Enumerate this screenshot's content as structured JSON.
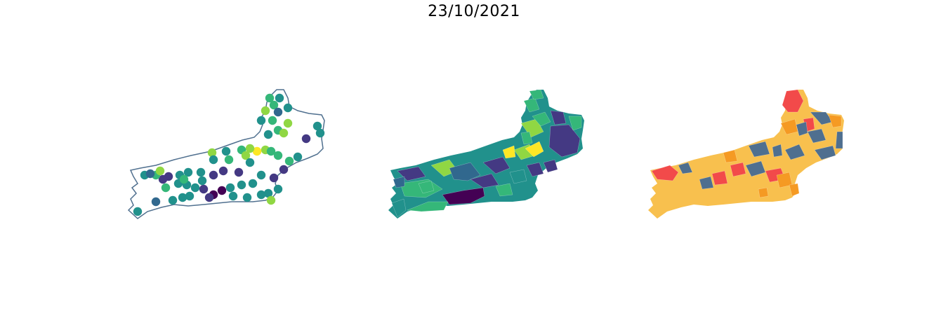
{
  "title": "23/10/2021",
  "panels": [
    {
      "id": "points-map",
      "kind": "bubble-map"
    },
    {
      "id": "choropleth-viridis",
      "kind": "choropleth"
    },
    {
      "id": "choropleth-risk",
      "kind": "choropleth"
    }
  ],
  "colors": {
    "outline": "#50708f",
    "viridis_dark": "#440154",
    "viridis_indigo": "#443983",
    "viridis_blue": "#31688e",
    "viridis_teal": "#21918c",
    "viridis_green": "#35b779",
    "viridis_lime": "#90d743",
    "viridis_yellow": "#fde725",
    "risk_blue": "#4f6f8f",
    "risk_yellow": "#f8c04e",
    "risk_orange": "#f59a23",
    "risk_red": "#f24a4a"
  }
}
